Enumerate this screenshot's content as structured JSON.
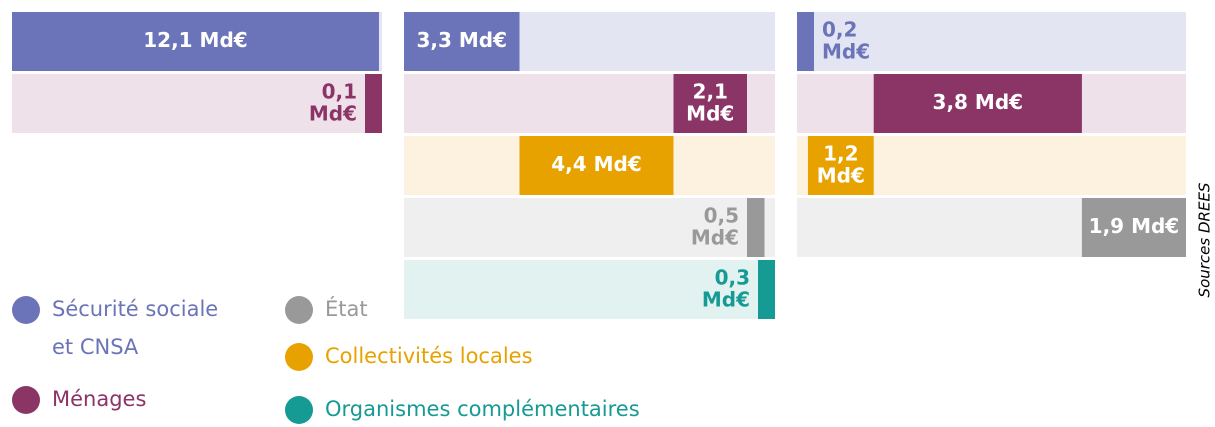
{
  "chart_data": {
    "type": "waterfall",
    "source": "Sources DREES",
    "series": [
      {
        "name": "Sécurité sociale et CNSA",
        "color": "#6b74b8",
        "band": "#e3e5f3",
        "values": [
          12.1,
          3.3,
          0.2
        ],
        "value_labels": [
          "12,1 Md€",
          "3,3 Md€",
          "0,2 Md€"
        ]
      },
      {
        "name": "Ménages",
        "color": "#8b3466",
        "band": "#efe1ea",
        "values": [
          0.1,
          2.1,
          3.8
        ],
        "value_labels": [
          "0,1 Md€",
          "2,1 Md€",
          "3,8 Md€"
        ]
      },
      {
        "name": "Collectivités locales",
        "color": "#e8a200",
        "band": "#fdf1df",
        "values": [
          null,
          4.4,
          1.2
        ],
        "value_labels": [
          null,
          "4,4 Md€",
          "1,2 Md€"
        ]
      },
      {
        "name": "État",
        "color": "#999999",
        "band": "#efefef",
        "values": [
          null,
          0.5,
          1.9
        ],
        "value_labels": [
          null,
          "0,5 Md€",
          "1,9 Md€"
        ]
      },
      {
        "name": "Organismes complémentaires",
        "color": "#169a94",
        "band": "#e2f2f1",
        "values": [
          null,
          0.3,
          null
        ],
        "value_labels": [
          null,
          "0,3 Md€",
          null
        ]
      }
    ]
  }
}
